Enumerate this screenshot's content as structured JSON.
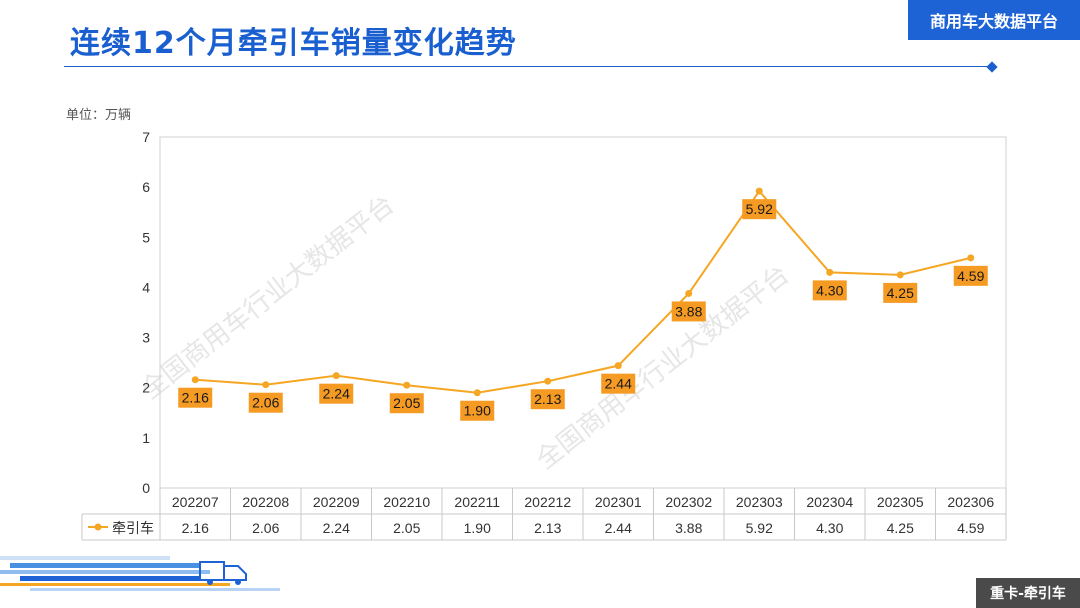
{
  "header": {
    "title": "连续12个月牵引车销量变化趋势",
    "brand": "商用车大数据平台"
  },
  "unit_label": "单位：万辆",
  "watermarks": [
    "全国商用车行业大数据平台",
    "全国商用车行业大数据平台"
  ],
  "footer_tag": "重卡-牵引车",
  "colors": {
    "accent": "#1a5fd0",
    "series": "#f5a623",
    "label_bg": "#f59a23"
  },
  "chart_data": {
    "type": "line",
    "title": "连续12个月牵引车销量变化趋势",
    "ylabel": "单位：万辆",
    "xlabel": "",
    "categories": [
      "202207",
      "202208",
      "202209",
      "202210",
      "202211",
      "202212",
      "202301",
      "202302",
      "202303",
      "202304",
      "202305",
      "202306"
    ],
    "series": [
      {
        "name": "牵引车",
        "values": [
          2.16,
          2.06,
          2.24,
          2.05,
          1.9,
          2.13,
          2.44,
          3.88,
          5.92,
          4.3,
          4.25,
          4.59
        ]
      }
    ],
    "value_labels": [
      "2.16",
      "2.06",
      "2.24",
      "2.05",
      "1.90",
      "2.13",
      "2.44",
      "3.88",
      "5.92",
      "4.30",
      "4.25",
      "4.59"
    ],
    "ylim": [
      0,
      7
    ],
    "yticks": [
      "0",
      "1",
      "2",
      "3",
      "4",
      "5",
      "6",
      "7"
    ],
    "grid": false,
    "legend": "data-table"
  }
}
